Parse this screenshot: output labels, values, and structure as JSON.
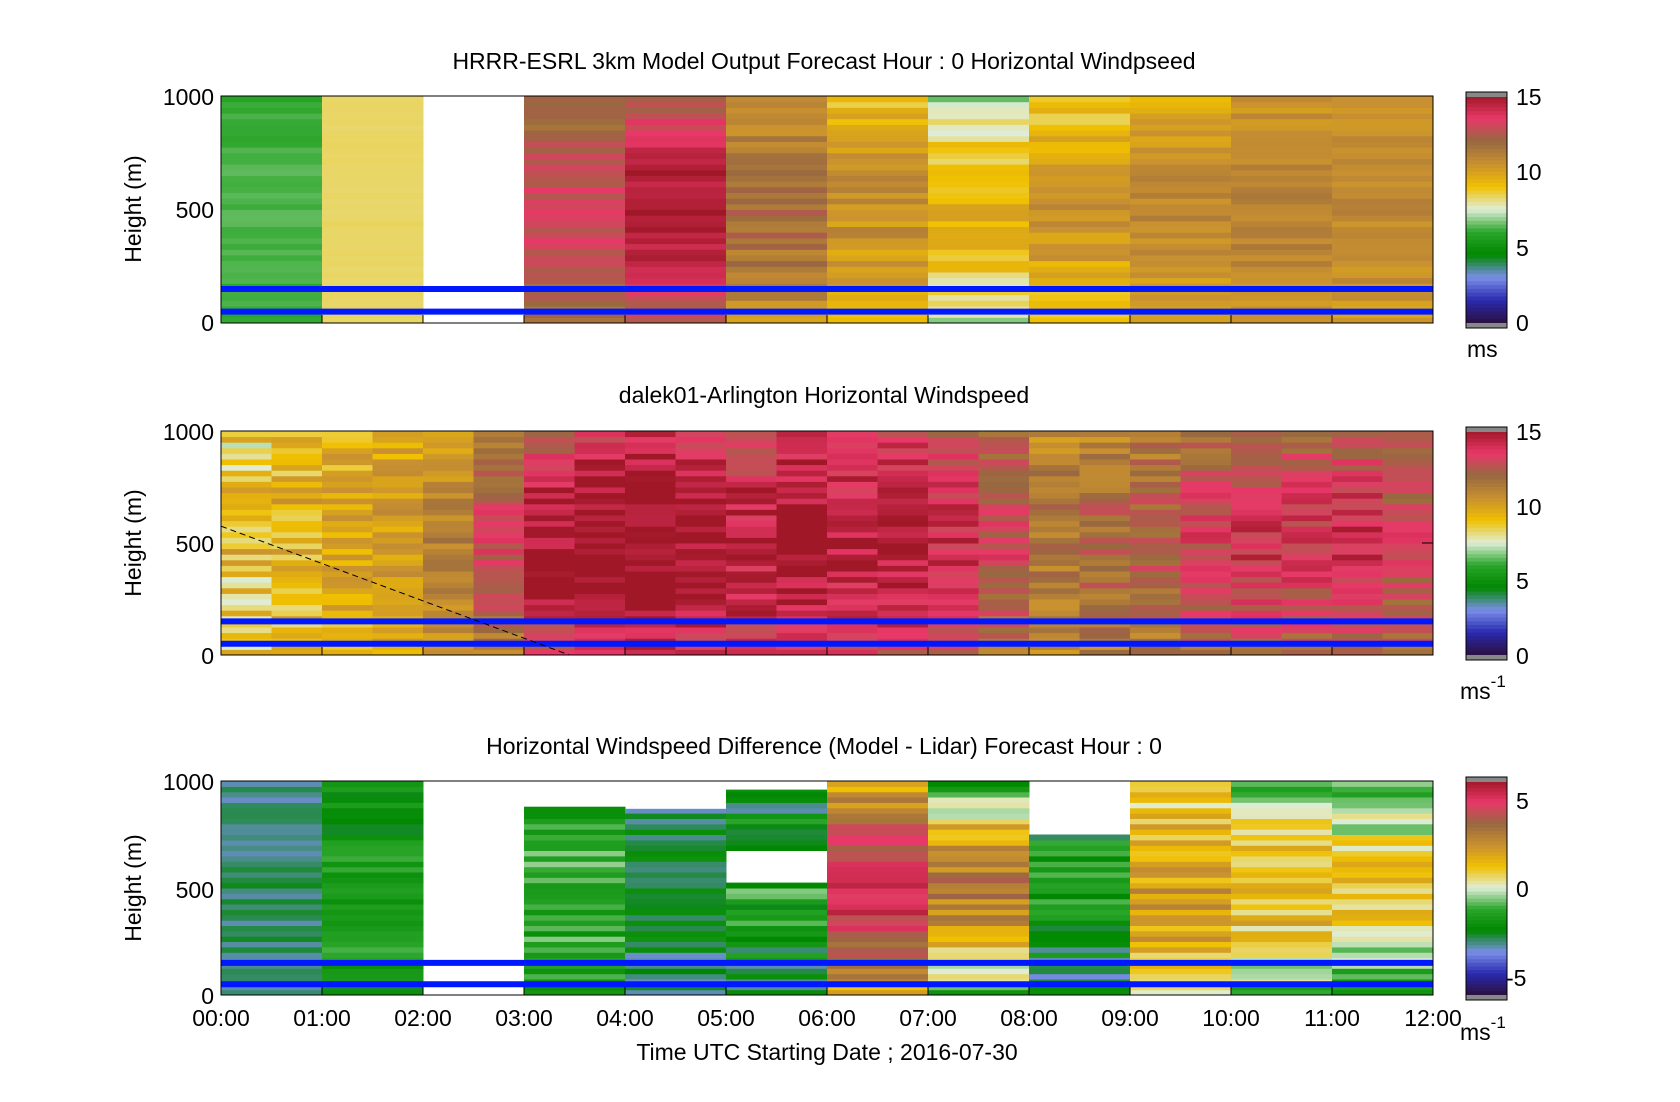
{
  "figure": {
    "xlabel": "Time UTC  Starting Date ; 2016-07-30",
    "x_tick_labels": [
      "00:00",
      "01:00",
      "02:00",
      "03:00",
      "04:00",
      "05:00",
      "06:00",
      "07:00",
      "08:00",
      "09:00",
      "10:00",
      "11:00",
      "12:00"
    ]
  },
  "colors": {
    "profile_line": "#0018ff",
    "colormap": [
      "#2b1040",
      "#2a2ab0",
      "#7a8fe8",
      "#008800",
      "#2aa52a",
      "#e0eed8",
      "#f0c000",
      "#c89030",
      "#986840",
      "#e83868",
      "#a01828"
    ]
  },
  "chart_data": [
    {
      "type": "heatmap",
      "title": "HRRR-ESRL 3km Model Output   Forecast Hour : 0 Horizontal Windpseed",
      "ylabel": "Height (m)",
      "y_tick_labels": [
        "1000",
        "500",
        "0"
      ],
      "ylim": [
        0,
        1000
      ],
      "x_range_hours": [
        0,
        12
      ],
      "colorbar": {
        "min": 0,
        "max": 15,
        "ticks": [
          "15",
          "10",
          "5",
          "0"
        ],
        "unit": "ms"
      },
      "profile_lines_m": [
        150,
        50
      ],
      "columns": [
        {
          "start": 0,
          "end": 1,
          "base": 6.0,
          "amp": 0.3,
          "noise": 0.2
        },
        {
          "start": 1,
          "end": 2,
          "base": 8.3,
          "amp": 0.0,
          "noise": 0.05
        },
        {
          "start": 2,
          "end": 3,
          "missing": true
        },
        {
          "start": 3,
          "end": 4,
          "base": 11.5,
          "amp": 1.5,
          "noise": 0.6
        },
        {
          "start": 4,
          "end": 5,
          "base": 12.3,
          "amp": 2.5,
          "noise": 0.6
        },
        {
          "start": 5,
          "end": 6,
          "base": 10.5,
          "amp": 1.2,
          "noise": 0.8
        },
        {
          "start": 6,
          "end": 7,
          "base": 9.0,
          "amp": 1.5,
          "noise": 0.7
        },
        {
          "start": 7,
          "end": 8,
          "base": 7.0,
          "amp": 2.5,
          "noise": 0.8
        },
        {
          "start": 8,
          "end": 9,
          "base": 8.5,
          "amp": 1.8,
          "noise": 0.7
        },
        {
          "start": 9,
          "end": 10,
          "base": 9.5,
          "amp": 1.3,
          "noise": 0.5
        },
        {
          "start": 10,
          "end": 11,
          "base": 10.3,
          "amp": 0.8,
          "noise": 0.5
        },
        {
          "start": 11,
          "end": 12,
          "base": 10.0,
          "amp": 0.8,
          "noise": 0.5
        }
      ]
    },
    {
      "type": "heatmap",
      "title": "dalek01-Arlington  Horizontal Windspeed",
      "ylabel": "Height (m)",
      "y_tick_labels": [
        "1000",
        "500",
        "0"
      ],
      "ylim": [
        0,
        1000
      ],
      "x_range_hours": [
        0,
        12
      ],
      "colorbar": {
        "min": 0,
        "max": 15,
        "ticks": [
          "15",
          "10",
          "5",
          "0"
        ],
        "unit": "ms",
        "unit_exponent": "-1"
      },
      "profile_lines_m": [
        150,
        50
      ],
      "dashed_line": {
        "x": [
          0,
          3.45
        ],
        "y_m": [
          575,
          0
        ]
      },
      "columns": [
        {
          "start": 0.0,
          "end": 0.5,
          "base": 8.5,
          "amp": 0.5,
          "noise": 1.5
        },
        {
          "start": 0.5,
          "end": 1.0,
          "base": 9.0,
          "amp": 0.5,
          "noise": 1.2
        },
        {
          "start": 1.0,
          "end": 1.5,
          "base": 9.3,
          "amp": 0.5,
          "noise": 1.0
        },
        {
          "start": 1.5,
          "end": 2.0,
          "base": 9.6,
          "amp": 0.5,
          "noise": 0.8
        },
        {
          "start": 2.0,
          "end": 2.5,
          "base": 10.0,
          "amp": 1.0,
          "noise": 0.8
        },
        {
          "start": 2.5,
          "end": 3.0,
          "base": 11.0,
          "amp": 2.0,
          "noise": 0.9
        },
        {
          "start": 3.0,
          "end": 3.5,
          "base": 12.5,
          "amp": 2.5,
          "noise": 1.0
        },
        {
          "start": 3.5,
          "end": 4.0,
          "base": 13.5,
          "amp": 2.0,
          "noise": 1.0
        },
        {
          "start": 4.0,
          "end": 4.5,
          "base": 14.0,
          "amp": 1.5,
          "noise": 1.0
        },
        {
          "start": 4.5,
          "end": 5.0,
          "base": 13.5,
          "amp": 1.5,
          "noise": 1.0
        },
        {
          "start": 5.0,
          "end": 5.5,
          "base": 13.0,
          "amp": 1.5,
          "noise": 1.2
        },
        {
          "start": 5.5,
          "end": 6.0,
          "base": 13.5,
          "amp": 1.5,
          "noise": 1.0
        },
        {
          "start": 6.0,
          "end": 6.5,
          "base": 13.0,
          "amp": 1.5,
          "noise": 1.0
        },
        {
          "start": 6.5,
          "end": 7.0,
          "base": 13.2,
          "amp": 1.5,
          "noise": 1.0
        },
        {
          "start": 7.0,
          "end": 7.5,
          "base": 12.5,
          "amp": 1.5,
          "noise": 1.0
        },
        {
          "start": 7.5,
          "end": 8.0,
          "base": 11.5,
          "amp": 1.5,
          "noise": 1.0
        },
        {
          "start": 8.0,
          "end": 8.5,
          "base": 10.5,
          "amp": 1.0,
          "noise": 1.0
        },
        {
          "start": 8.5,
          "end": 9.0,
          "base": 11.0,
          "amp": 1.0,
          "noise": 1.0
        },
        {
          "start": 9.0,
          "end": 9.5,
          "base": 11.2,
          "amp": 1.2,
          "noise": 1.0
        },
        {
          "start": 9.5,
          "end": 10.0,
          "base": 11.8,
          "amp": 1.5,
          "noise": 1.0
        },
        {
          "start": 10.0,
          "end": 10.5,
          "base": 12.3,
          "amp": 1.5,
          "noise": 1.0
        },
        {
          "start": 10.5,
          "end": 11.0,
          "base": 12.0,
          "amp": 1.5,
          "noise": 1.0
        },
        {
          "start": 11.0,
          "end": 11.5,
          "base": 12.4,
          "amp": 1.5,
          "noise": 1.0
        },
        {
          "start": 11.5,
          "end": 12.0,
          "base": 11.8,
          "amp": 1.2,
          "noise": 1.0
        }
      ]
    },
    {
      "type": "heatmap",
      "title": "Horizontal Windspeed Difference (Model - Lidar) Forecast Hour : 0",
      "ylabel": "Height (m)",
      "y_tick_labels": [
        "1000",
        "500",
        "0"
      ],
      "ylim": [
        0,
        1000
      ],
      "x_range_hours": [
        0,
        12
      ],
      "colorbar": {
        "min": -6,
        "max": 6,
        "ticks": [
          "5",
          "0",
          "-5"
        ],
        "unit": "ms",
        "unit_exponent": "-1"
      },
      "profile_lines_m": [
        150,
        50
      ],
      "columns": [
        {
          "start": 0,
          "end": 1,
          "base": -3.2,
          "amp": 0.3,
          "noise": 0.4,
          "top_m": 1000
        },
        {
          "start": 1,
          "end": 2,
          "base": -2.0,
          "amp": 0.3,
          "noise": 0.8,
          "top_m": 1000
        },
        {
          "start": 2,
          "end": 3,
          "missing": true
        },
        {
          "start": 3,
          "end": 4,
          "base": -1.8,
          "amp": 0.6,
          "noise": 0.8,
          "top_m": 880
        },
        {
          "start": 4,
          "end": 5,
          "base": -3.2,
          "amp": 0.8,
          "noise": 0.7,
          "top_m": 870
        },
        {
          "start": 5,
          "end": 6,
          "base": -3.0,
          "amp": 1.5,
          "noise": 1.0,
          "top_m": 960,
          "gap_m": [
            520,
            680
          ]
        },
        {
          "start": 6,
          "end": 7,
          "base": 1.5,
          "amp": 3.5,
          "noise": 0.8,
          "top_m": 1000
        },
        {
          "start": 7,
          "end": 8,
          "base": -1.5,
          "amp": 4.5,
          "noise": 1.0,
          "top_m": 1000
        },
        {
          "start": 8,
          "end": 9,
          "base": -3.0,
          "amp": 1.2,
          "noise": 1.0,
          "top_m": 750
        },
        {
          "start": 9,
          "end": 10,
          "base": 0.5,
          "amp": 1.5,
          "noise": 1.0,
          "top_m": 1000
        },
        {
          "start": 10,
          "end": 11,
          "base": -1.0,
          "amp": 2.5,
          "noise": 1.0,
          "top_m": 1000
        },
        {
          "start": 11,
          "end": 12,
          "base": -1.5,
          "amp": 2.5,
          "noise": 1.0,
          "top_m": 1000
        }
      ]
    }
  ]
}
